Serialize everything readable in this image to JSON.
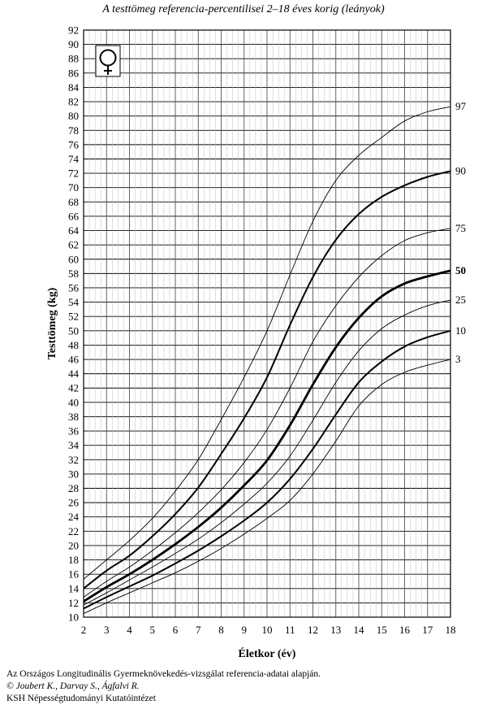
{
  "chart_data": {
    "type": "line",
    "title": "A testtömeg referencia-percentilisei 2–18 éves korig (leányok)",
    "xlabel": "Életkor (év)",
    "ylabel": "Testtömeg (kg)",
    "xlim": [
      2,
      18
    ],
    "ylim": [
      10,
      92
    ],
    "x_ticks": [
      2,
      3,
      4,
      5,
      6,
      7,
      8,
      9,
      10,
      11,
      12,
      13,
      14,
      15,
      16,
      17,
      18
    ],
    "y_ticks": [
      10,
      12,
      14,
      16,
      18,
      20,
      22,
      24,
      26,
      28,
      30,
      32,
      34,
      36,
      38,
      40,
      42,
      44,
      46,
      48,
      50,
      52,
      54,
      56,
      58,
      60,
      62,
      64,
      66,
      68,
      70,
      72,
      74,
      76,
      78,
      80,
      82,
      84,
      86,
      88,
      90,
      92
    ],
    "grid": true,
    "legend": "right-edge labels",
    "series": [
      {
        "name": "3",
        "weight": "thin",
        "x": [
          2,
          3,
          4,
          5,
          6,
          7,
          8,
          9,
          10,
          11,
          12,
          13,
          14,
          15,
          16,
          17,
          18
        ],
        "values": [
          10.5,
          12.0,
          13.4,
          14.8,
          16.2,
          17.8,
          19.6,
          21.6,
          23.8,
          26.3,
          30.0,
          34.6,
          39.5,
          42.5,
          44.2,
          45.2,
          46.0
        ]
      },
      {
        "name": "10",
        "weight": "medium",
        "x": [
          2,
          3,
          4,
          5,
          6,
          7,
          8,
          9,
          10,
          11,
          12,
          13,
          14,
          15,
          16,
          17,
          18
        ],
        "values": [
          11.2,
          12.8,
          14.3,
          15.8,
          17.5,
          19.3,
          21.3,
          23.5,
          26.0,
          29.3,
          33.5,
          38.3,
          42.8,
          45.7,
          47.8,
          49.1,
          50.0
        ]
      },
      {
        "name": "25",
        "weight": "thin",
        "x": [
          2,
          3,
          4,
          5,
          6,
          7,
          8,
          9,
          10,
          11,
          12,
          13,
          14,
          15,
          16,
          17,
          18
        ],
        "values": [
          11.7,
          13.4,
          15.2,
          17.0,
          18.9,
          20.9,
          23.2,
          25.8,
          28.7,
          32.5,
          37.5,
          42.8,
          47.2,
          50.3,
          52.2,
          53.5,
          54.3
        ]
      },
      {
        "name": "50",
        "weight": "bold",
        "x": [
          2,
          3,
          4,
          5,
          6,
          7,
          8,
          9,
          10,
          11,
          12,
          13,
          14,
          15,
          16,
          17,
          18
        ],
        "values": [
          12.2,
          14.2,
          16.0,
          18.0,
          20.2,
          22.6,
          25.3,
          28.4,
          31.9,
          36.8,
          42.5,
          47.7,
          51.8,
          54.8,
          56.6,
          57.6,
          58.4
        ]
      },
      {
        "name": "75",
        "weight": "thin",
        "x": [
          2,
          3,
          4,
          5,
          6,
          7,
          8,
          9,
          10,
          11,
          12,
          13,
          14,
          15,
          16,
          17,
          18
        ],
        "values": [
          12.8,
          15.0,
          17.0,
          19.3,
          21.8,
          24.6,
          27.8,
          31.6,
          36.2,
          42.0,
          48.5,
          53.5,
          57.5,
          60.5,
          62.6,
          63.7,
          64.3
        ]
      },
      {
        "name": "90",
        "weight": "medium",
        "x": [
          2,
          3,
          4,
          5,
          6,
          7,
          8,
          9,
          10,
          11,
          12,
          13,
          14,
          15,
          16,
          17,
          18
        ],
        "values": [
          14.0,
          16.5,
          18.6,
          21.3,
          24.4,
          28.1,
          32.8,
          37.8,
          43.5,
          50.8,
          57.5,
          62.7,
          66.3,
          68.7,
          70.3,
          71.5,
          72.3
        ]
      },
      {
        "name": "97",
        "weight": "thin",
        "x": [
          2,
          3,
          4,
          5,
          6,
          7,
          8,
          9,
          10,
          11,
          12,
          13,
          14,
          15,
          16,
          17,
          18
        ],
        "values": [
          15.3,
          18.0,
          20.7,
          23.8,
          27.6,
          32.0,
          37.6,
          43.5,
          50.0,
          57.8,
          65.3,
          71.0,
          74.5,
          77.0,
          79.3,
          80.6,
          81.3
        ]
      }
    ]
  },
  "symbol": {
    "name": "female-symbol-icon",
    "glyph": "♀"
  },
  "footer": {
    "line1": "Az Országos Longitudinális Gyermeknövekedés-vizsgálat referencia-adatai alapján.",
    "line2": "© Joubert K., Darvay S., Ágfalvi R.",
    "line3": "KSH Népességtudományi Kutatóintézet"
  }
}
